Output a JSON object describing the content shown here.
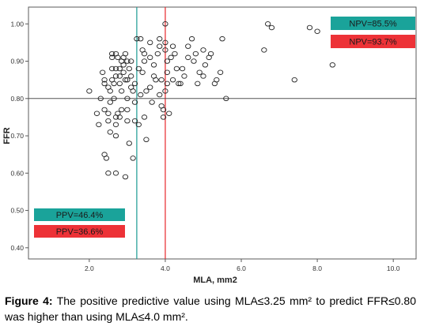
{
  "chart_data": {
    "type": "scatter",
    "xlabel": "MLA, mm2",
    "ylabel": "FFR",
    "xlim": [
      0.4,
      10.6
    ],
    "ylim": [
      0.37,
      1.045
    ],
    "xticks": [
      2.0,
      4.0,
      6.0,
      8.0,
      10.0
    ],
    "xtick_labels": [
      "2.0",
      "4.0",
      "6.0",
      "8.0",
      "10.0"
    ],
    "yticks": [
      0.4,
      0.5,
      0.6,
      0.7,
      0.8,
      0.9,
      1.0
    ],
    "ytick_labels": [
      "0.40",
      "0.50",
      "0.60",
      "0.70",
      "0.80",
      "0.90",
      "1.00"
    ],
    "grid": false,
    "reference_lines": [
      {
        "orientation": "vertical",
        "value": 3.25,
        "color": "#1a9a93"
      },
      {
        "orientation": "vertical",
        "value": 4.0,
        "color": "#e8262b"
      },
      {
        "orientation": "horizontal",
        "value": 0.8,
        "color": "#555555"
      }
    ],
    "annotations": [
      {
        "text": "NPV=85.5%",
        "color": "#1aa39a",
        "placement": "top-right-upper"
      },
      {
        "text": "NPV=93.7%",
        "color": "#ed3237",
        "placement": "top-right-lower"
      },
      {
        "text": "PPV=46.4%",
        "color": "#1aa39a",
        "placement": "bottom-left-upper"
      },
      {
        "text": "PPV=36.6%",
        "color": "#ed3237",
        "placement": "bottom-left-lower"
      }
    ],
    "points": [
      [
        2.0,
        0.82
      ],
      [
        2.2,
        0.76
      ],
      [
        2.25,
        0.73
      ],
      [
        2.3,
        0.8
      ],
      [
        2.35,
        0.87
      ],
      [
        2.4,
        0.84
      ],
      [
        2.4,
        0.77
      ],
      [
        2.4,
        0.65
      ],
      [
        2.45,
        0.64
      ],
      [
        2.5,
        0.76
      ],
      [
        2.5,
        0.74
      ],
      [
        2.5,
        0.6
      ],
      [
        2.55,
        0.82
      ],
      [
        2.55,
        0.71
      ],
      [
        2.6,
        0.92
      ],
      [
        2.6,
        0.91
      ],
      [
        2.6,
        0.85
      ],
      [
        2.65,
        0.84
      ],
      [
        2.65,
        0.8
      ],
      [
        2.7,
        0.92
      ],
      [
        2.7,
        0.86
      ],
      [
        2.7,
        0.75
      ],
      [
        2.7,
        0.73
      ],
      [
        2.7,
        0.7
      ],
      [
        2.7,
        0.6
      ],
      [
        2.75,
        0.91
      ],
      [
        2.75,
        0.76
      ],
      [
        2.8,
        0.88
      ],
      [
        2.8,
        0.84
      ],
      [
        2.8,
        0.75
      ],
      [
        2.85,
        0.9
      ],
      [
        2.85,
        0.82
      ],
      [
        2.9,
        0.89
      ],
      [
        2.9,
        0.87
      ],
      [
        2.95,
        0.92
      ],
      [
        2.95,
        0.85
      ],
      [
        3.0,
        0.9
      ],
      [
        3.0,
        0.85
      ],
      [
        3.0,
        0.8
      ],
      [
        3.0,
        0.77
      ],
      [
        3.05,
        0.88
      ],
      [
        3.1,
        0.86
      ],
      [
        3.1,
        0.83
      ],
      [
        3.15,
        0.82
      ],
      [
        3.2,
        0.84
      ],
      [
        3.2,
        0.74
      ],
      [
        3.25,
        0.96
      ],
      [
        3.35,
        0.96
      ],
      [
        3.4,
        0.93
      ],
      [
        3.4,
        0.87
      ],
      [
        3.45,
        0.9
      ],
      [
        3.45,
        0.75
      ],
      [
        3.5,
        0.69
      ],
      [
        3.6,
        0.91
      ],
      [
        3.6,
        0.83
      ],
      [
        3.65,
        0.79
      ],
      [
        3.7,
        0.86
      ],
      [
        3.75,
        0.85
      ],
      [
        3.8,
        0.92
      ],
      [
        3.85,
        0.94
      ],
      [
        3.85,
        0.81
      ],
      [
        3.9,
        0.85
      ],
      [
        3.95,
        0.77
      ],
      [
        3.95,
        0.75
      ],
      [
        4.0,
        1.0
      ],
      [
        4.0,
        0.95
      ],
      [
        4.0,
        0.93
      ],
      [
        4.05,
        0.87
      ],
      [
        4.05,
        0.84
      ],
      [
        4.1,
        0.76
      ],
      [
        4.15,
        0.91
      ],
      [
        4.2,
        0.85
      ],
      [
        4.3,
        0.88
      ],
      [
        4.35,
        0.84
      ],
      [
        4.4,
        0.84
      ],
      [
        4.5,
        0.86
      ],
      [
        4.6,
        0.94
      ],
      [
        4.7,
        0.96
      ],
      [
        4.75,
        0.9
      ],
      [
        4.8,
        0.92
      ],
      [
        4.85,
        0.84
      ],
      [
        4.9,
        0.87
      ],
      [
        5.0,
        0.93
      ],
      [
        5.05,
        0.89
      ],
      [
        5.15,
        0.91
      ],
      [
        5.2,
        0.92
      ],
      [
        5.3,
        0.84
      ],
      [
        5.35,
        0.85
      ],
      [
        5.45,
        0.87
      ],
      [
        5.5,
        0.96
      ],
      [
        5.6,
        0.8
      ],
      [
        6.6,
        0.93
      ],
      [
        6.7,
        1.0
      ],
      [
        6.8,
        0.99
      ],
      [
        7.4,
        0.85
      ],
      [
        7.8,
        0.99
      ],
      [
        8.0,
        0.98
      ],
      [
        8.4,
        0.89
      ],
      [
        2.4,
        0.85
      ],
      [
        2.6,
        0.88
      ],
      [
        2.9,
        0.91
      ],
      [
        3.1,
        0.9
      ],
      [
        3.3,
        0.88
      ],
      [
        3.5,
        0.82
      ],
      [
        3.7,
        0.89
      ],
      [
        3.3,
        0.73
      ],
      [
        3.05,
        0.68
      ],
      [
        2.55,
        0.79
      ],
      [
        2.85,
        0.77
      ],
      [
        3.15,
        0.64
      ],
      [
        2.95,
        0.59
      ],
      [
        3.6,
        0.95
      ],
      [
        4.05,
        0.9
      ],
      [
        4.25,
        0.92
      ],
      [
        3.9,
        0.78
      ],
      [
        4.45,
        0.88
      ],
      [
        5.0,
        0.86
      ],
      [
        4.2,
        0.94
      ],
      [
        3.45,
        0.92
      ],
      [
        2.8,
        0.86
      ],
      [
        2.7,
        0.88
      ],
      [
        3.2,
        0.79
      ],
      [
        2.5,
        0.83
      ],
      [
        3.35,
        0.81
      ],
      [
        3.0,
        0.74
      ],
      [
        3.85,
        0.96
      ],
      [
        4.0,
        0.82
      ],
      [
        4.6,
        0.91
      ]
    ],
    "title": ""
  },
  "caption": {
    "label": "Figure 4:",
    "text": "The positive predictive value using MLA≤3.25 mm² to predict FFR≤0.80 was higher than using MLA≤4.0 mm²."
  },
  "colors": {
    "teal": "#1aa39a",
    "red": "#ed3237",
    "axis": "#5b5b5b"
  }
}
